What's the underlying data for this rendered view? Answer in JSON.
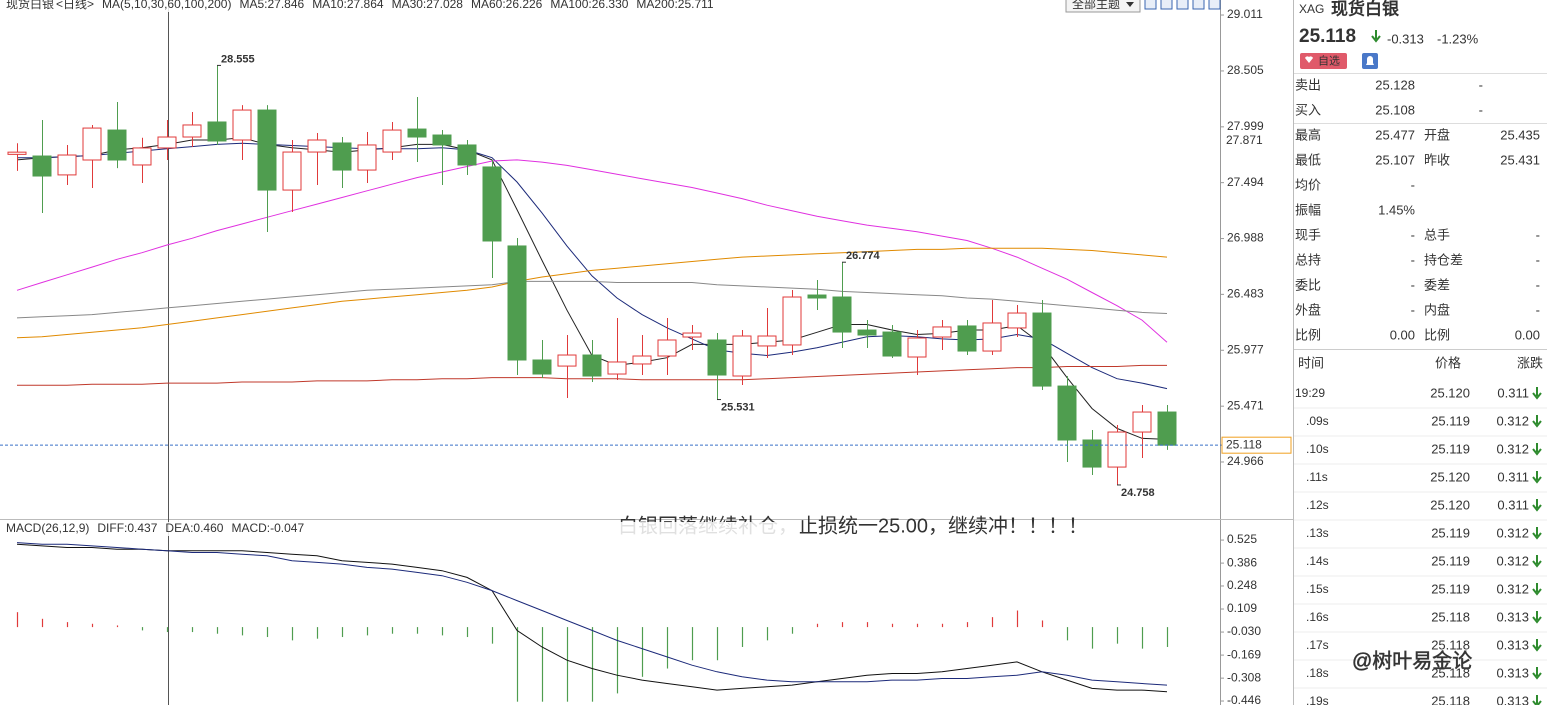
{
  "theme_button": "全部主题",
  "annotation": "白银回落继续补仓，止损统一25.00，继续冲！！！！",
  "watermark": "@树叶易金论",
  "chart_data": [
    {
      "type": "candlestick",
      "instrument": "现货白银",
      "period": "<日线>",
      "indicator": "MA(5,10,30,60,100,200)",
      "up_color": "#e03a3a",
      "down_color": "#4f9d4f",
      "open": [
        27.75,
        27.735,
        27.564,
        27.699,
        27.97,
        27.654,
        27.808,
        27.907,
        28.043,
        27.88,
        28.151,
        27.427,
        27.771,
        27.853,
        27.608,
        27.771,
        27.979,
        27.925,
        27.835,
        27.636,
        26.921,
        25.889,
        25.834,
        25.934,
        25.762,
        25.853,
        25.925,
        26.097,
        26.07,
        25.744,
        26.016,
        26.025,
        26.477,
        26.459,
        26.16,
        26.142,
        25.916,
        26.097,
        26.197,
        25.97,
        26.179,
        26.314,
        25.653,
        25.165,
        24.92,
        25.237,
        25.418
      ],
      "high": [
        27.85,
        28.061,
        27.835,
        28.016,
        28.224,
        27.9,
        28.061,
        28.133,
        28.555,
        28.196,
        28.196,
        27.88,
        27.943,
        27.907,
        27.952,
        28.043,
        28.269,
        27.97,
        27.88,
        27.699,
        26.993,
        26.07,
        26.115,
        26.07,
        26.269,
        26.115,
        26.269,
        26.206,
        26.133,
        26.16,
        26.359,
        26.522,
        26.613,
        26.774,
        26.251,
        26.206,
        26.16,
        26.251,
        26.251,
        26.432,
        26.387,
        26.432,
        25.743,
        25.255,
        25.301,
        25.482,
        25.482
      ],
      "low": [
        27.6,
        27.219,
        27.473,
        27.445,
        27.626,
        27.491,
        27.699,
        27.817,
        27.835,
        27.699,
        27.047,
        27.228,
        27.473,
        27.445,
        27.491,
        27.699,
        27.681,
        27.473,
        27.563,
        26.631,
        25.753,
        25.726,
        25.545,
        25.69,
        25.708,
        25.753,
        25.753,
        25.979,
        25.531,
        25.663,
        25.907,
        25.934,
        26.341,
        25.997,
        25.997,
        25.907,
        25.753,
        25.979,
        25.934,
        25.934,
        26.097,
        25.617,
        24.966,
        24.848,
        24.758,
        25.002,
        25.075
      ],
      "close": [
        27.77,
        27.554,
        27.744,
        27.988,
        27.699,
        27.808,
        27.907,
        28.016,
        27.871,
        28.151,
        27.427,
        27.771,
        27.88,
        27.608,
        27.835,
        27.97,
        27.907,
        27.835,
        27.654,
        26.966,
        25.889,
        25.762,
        25.934,
        25.744,
        25.871,
        25.925,
        26.07,
        26.133,
        25.753,
        26.106,
        26.106,
        26.459,
        26.45,
        26.142,
        26.115,
        25.925,
        26.088,
        26.188,
        25.97,
        26.224,
        26.314,
        25.653,
        25.165,
        24.92,
        25.237,
        25.418,
        25.118
      ],
      "series": [
        {
          "name": "MA5:27.846",
          "color": "#222222",
          "values": [
            27.7,
            27.72,
            27.73,
            27.74,
            27.79,
            27.81,
            27.84,
            27.88,
            27.88,
            27.9,
            27.84,
            27.81,
            27.79,
            27.77,
            27.79,
            27.81,
            27.84,
            27.84,
            27.79,
            27.7,
            27.25,
            26.79,
            26.34,
            25.93,
            25.84,
            25.87,
            25.91,
            26.03,
            26.03,
            26.03,
            26.05,
            26.07,
            26.14,
            26.21,
            26.21,
            26.16,
            26.12,
            26.13,
            26.16,
            26.16,
            26.2,
            26.03,
            25.73,
            25.45,
            25.27,
            25.18,
            25.17
          ]
        },
        {
          "name": "MA10:27.864",
          "color": "#1c2a7a",
          "values": [
            27.72,
            27.72,
            27.73,
            27.74,
            27.76,
            27.78,
            27.8,
            27.82,
            27.84,
            27.85,
            27.84,
            27.83,
            27.82,
            27.81,
            27.8,
            27.8,
            27.8,
            27.81,
            27.79,
            27.72,
            27.5,
            27.22,
            26.92,
            26.65,
            26.45,
            26.3,
            26.18,
            26.08,
            25.98,
            25.95,
            25.93,
            25.96,
            26.0,
            26.05,
            26.1,
            26.11,
            26.1,
            26.08,
            26.07,
            26.08,
            26.12,
            26.08,
            25.95,
            25.82,
            25.72,
            25.68,
            25.63
          ]
        },
        {
          "name": "MA30:27.028",
          "color": "#e030e0",
          "values": [
            26.52,
            26.59,
            26.66,
            26.73,
            26.8,
            26.86,
            26.93,
            26.99,
            27.06,
            27.12,
            27.18,
            27.24,
            27.3,
            27.36,
            27.42,
            27.48,
            27.54,
            27.59,
            27.64,
            27.69,
            27.7,
            27.68,
            27.65,
            27.61,
            27.57,
            27.53,
            27.49,
            27.45,
            27.4,
            27.35,
            27.29,
            27.24,
            27.19,
            27.15,
            27.11,
            27.08,
            27.05,
            27.01,
            26.97,
            26.9,
            26.82,
            26.72,
            26.62,
            26.5,
            26.38,
            26.25,
            26.05
          ]
        },
        {
          "name": "MA60:26.226",
          "color": "#e08a00",
          "values": [
            26.09,
            26.1,
            26.12,
            26.14,
            26.16,
            26.18,
            26.21,
            26.24,
            26.27,
            26.3,
            26.33,
            26.36,
            26.39,
            26.42,
            26.44,
            26.46,
            26.48,
            26.5,
            26.52,
            26.55,
            26.6,
            26.64,
            26.67,
            26.7,
            26.72,
            26.74,
            26.76,
            26.78,
            26.8,
            26.82,
            26.83,
            26.84,
            26.85,
            26.86,
            26.87,
            26.88,
            26.89,
            26.89,
            26.9,
            26.9,
            26.9,
            26.9,
            26.89,
            26.88,
            26.86,
            26.84,
            26.82
          ]
        },
        {
          "name": "MA100:26.330",
          "color": "#888888",
          "values": [
            26.27,
            26.28,
            26.29,
            26.3,
            26.32,
            26.34,
            26.36,
            26.38,
            26.4,
            26.42,
            26.44,
            26.46,
            26.48,
            26.5,
            26.52,
            26.53,
            26.54,
            26.55,
            26.56,
            26.57,
            26.6,
            26.6,
            26.6,
            26.6,
            26.59,
            26.59,
            26.59,
            26.59,
            26.57,
            26.56,
            26.55,
            26.54,
            26.53,
            26.51,
            26.5,
            26.49,
            26.48,
            26.47,
            26.45,
            26.44,
            26.42,
            26.4,
            26.38,
            26.36,
            26.34,
            26.32,
            26.31
          ]
        },
        {
          "name": "MA200:25.711",
          "color": "#c0392b",
          "values": [
            25.66,
            25.66,
            25.66,
            25.67,
            25.67,
            25.67,
            25.68,
            25.68,
            25.68,
            25.69,
            25.69,
            25.69,
            25.7,
            25.7,
            25.7,
            25.71,
            25.71,
            25.72,
            25.72,
            25.73,
            25.73,
            25.73,
            25.72,
            25.72,
            25.72,
            25.71,
            25.71,
            25.71,
            25.71,
            25.71,
            25.72,
            25.73,
            25.74,
            25.75,
            25.76,
            25.77,
            25.78,
            25.79,
            25.8,
            25.81,
            25.82,
            25.82,
            25.83,
            25.83,
            25.83,
            25.84,
            25.84
          ]
        }
      ],
      "extremes": [
        8,
        33,
        28,
        44
      ],
      "ylim": [
        24.459,
        29.147
      ],
      "yticks": [
        29.011,
        28.505,
        27.999,
        27.494,
        26.988,
        26.483,
        25.977,
        25.471,
        24.966
      ],
      "last_price": 25.118,
      "crosshair_price": 27.871
    },
    {
      "type": "macd",
      "indicator": "MACD(26,12,9)",
      "series": [
        {
          "name": "DIFF:0.437",
          "color": "#111111",
          "values": [
            0.5,
            0.49,
            0.48,
            0.48,
            0.47,
            0.47,
            0.46,
            0.46,
            0.46,
            0.46,
            0.45,
            0.44,
            0.43,
            0.4,
            0.39,
            0.38,
            0.36,
            0.34,
            0.3,
            0.22,
            -0.02,
            -0.12,
            -0.2,
            -0.25,
            -0.29,
            -0.32,
            -0.34,
            -0.36,
            -0.38,
            -0.37,
            -0.36,
            -0.35,
            -0.33,
            -0.31,
            -0.29,
            -0.28,
            -0.28,
            -0.27,
            -0.25,
            -0.23,
            -0.21,
            -0.27,
            -0.32,
            -0.37,
            -0.38,
            -0.38,
            -0.39
          ]
        },
        {
          "name": "DEA:0.460",
          "color": "#1c2a7a",
          "values": [
            0.51,
            0.5,
            0.5,
            0.49,
            0.48,
            0.47,
            0.46,
            0.45,
            0.45,
            0.44,
            0.43,
            0.4,
            0.39,
            0.38,
            0.36,
            0.35,
            0.33,
            0.31,
            0.27,
            0.22,
            0.16,
            0.1,
            0.04,
            -0.02,
            -0.08,
            -0.13,
            -0.18,
            -0.23,
            -0.27,
            -0.3,
            -0.32,
            -0.33,
            -0.33,
            -0.33,
            -0.33,
            -0.32,
            -0.32,
            -0.31,
            -0.31,
            -0.3,
            -0.29,
            -0.27,
            -0.29,
            -0.32,
            -0.33,
            -0.34,
            -0.35
          ]
        }
      ],
      "histogram": {
        "name": "MACD:-0.047",
        "color": "#e020e0",
        "up_color": "#e03a3a",
        "down_color": "#4f9d4f",
        "values": [
          0.09,
          0.05,
          0.03,
          0.02,
          0.01,
          -0.02,
          -0.03,
          -0.03,
          -0.04,
          -0.05,
          -0.06,
          -0.08,
          -0.07,
          -0.06,
          -0.05,
          -0.04,
          -0.04,
          -0.05,
          -0.06,
          -0.1,
          -0.45,
          -0.45,
          -0.45,
          -0.45,
          -0.4,
          -0.3,
          -0.25,
          -0.2,
          -0.2,
          -0.12,
          -0.08,
          -0.04,
          0.02,
          0.03,
          0.03,
          0.02,
          0.02,
          0.02,
          0.03,
          0.06,
          0.1,
          0.04,
          -0.08,
          -0.13,
          -0.1,
          -0.13,
          -0.12
        ]
      },
      "ylim": [
        -0.47,
        0.634
      ],
      "yticks": [
        0.525,
        0.386,
        0.248,
        0.109,
        {
          "value": -0.03,
          "label": "-0.030"
        },
        -0.169,
        -0.308,
        -0.446
      ]
    }
  ],
  "quote": {
    "code": "XAG",
    "name": "现货白银",
    "price": "25.118",
    "change": "-0.313",
    "change_pct": "-1.23%",
    "color": "#2e8b2e",
    "button": "自选",
    "rows": [
      {
        "cells": [
          "卖出",
          "25.128",
          "-"
        ],
        "colors": [
          "#333",
          "#2e8b2e",
          "#333"
        ]
      },
      {
        "cells": [
          "买入",
          "25.108",
          "-"
        ],
        "colors": [
          "#333",
          "#2e8b2e",
          "#333"
        ]
      },
      {
        "cells": [
          "最高",
          "25.477",
          "开盘",
          "25.435"
        ],
        "colors": [
          "#333",
          "#e03a3a",
          "#333",
          "#e03a3a"
        ]
      },
      {
        "cells": [
          "最低",
          "25.107",
          "昨收",
          "25.431"
        ],
        "colors": [
          "#333",
          "#2e8b2e",
          "#333",
          "#111"
        ]
      },
      {
        "cells": [
          "均价",
          "-"
        ],
        "colors": [
          "#333",
          "#333"
        ]
      },
      {
        "cells": [
          "振幅",
          "1.45%"
        ],
        "colors": [
          "#333",
          "#111"
        ]
      },
      {
        "cells": [
          "现手",
          "-",
          "总手",
          "-"
        ],
        "colors": [
          "#333",
          "#333",
          "#333",
          "#333"
        ]
      },
      {
        "cells": [
          "总持",
          "-",
          "持仓差",
          "-"
        ],
        "colors": [
          "#333",
          "#333",
          "#333",
          "#333"
        ]
      },
      {
        "cells": [
          "委比",
          "-",
          "委差",
          "-"
        ],
        "colors": [
          "#333",
          "#333",
          "#333",
          "#333"
        ]
      },
      {
        "cells": [
          "外盘",
          "-",
          "内盘",
          "-"
        ],
        "colors": [
          "#333",
          "#333",
          "#333",
          "#333"
        ]
      },
      {
        "cells": [
          "比例",
          "0.00",
          "比例",
          "0.00"
        ],
        "colors": [
          "#333",
          "#111",
          "#333",
          "#111"
        ]
      }
    ],
    "trades": {
      "header": [
        "时间",
        "价格",
        "涨跌"
      ],
      "latest_color": "#e0a000",
      "color": "#2e8b2e",
      "rows": [
        [
          "19:29",
          "25.120",
          "0.311"
        ],
        [
          ".09s",
          "25.119",
          "0.312"
        ],
        [
          ".10s",
          "25.119",
          "0.312"
        ],
        [
          ".11s",
          "25.120",
          "0.311"
        ],
        [
          ".12s",
          "25.120",
          "0.311"
        ],
        [
          ".13s",
          "25.119",
          "0.312"
        ],
        [
          ".14s",
          "25.119",
          "0.312"
        ],
        [
          ".15s",
          "25.119",
          "0.312"
        ],
        [
          ".16s",
          "25.118",
          "0.313"
        ],
        [
          ".17s",
          "25.118",
          "0.313"
        ],
        [
          ".18s",
          "25.118",
          "0.313"
        ],
        [
          ".19s",
          "25.118",
          "0.313"
        ]
      ]
    }
  }
}
